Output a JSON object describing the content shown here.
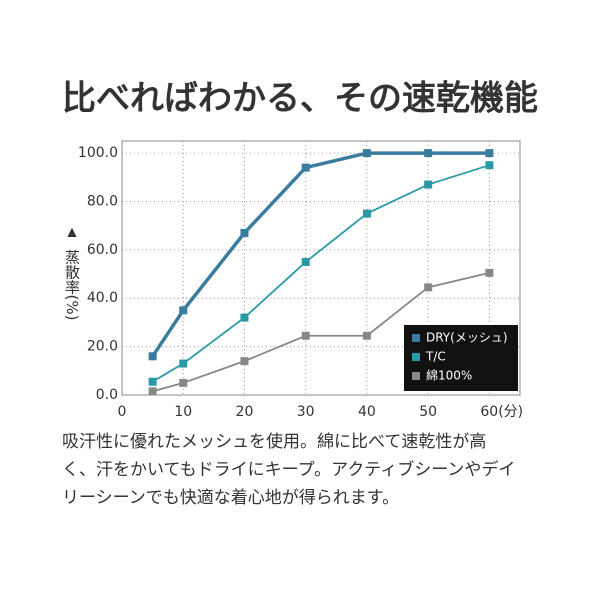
{
  "chart_data": {
    "type": "line",
    "title": "比べればわかる、その速乾機能",
    "y_label": "蒸散率(%)",
    "x": [
      5,
      10,
      20,
      30,
      40,
      50,
      60
    ],
    "series": [
      {
        "name": "DRY(メッシュ)",
        "color": "#3a7ca0",
        "values": [
          16,
          35,
          67,
          94,
          100,
          100,
          100
        ]
      },
      {
        "name": "T/C",
        "color": "#2a9aa8",
        "values": [
          5.5,
          13,
          32,
          55,
          75,
          87,
          95
        ]
      },
      {
        "name": "綿100%",
        "color": "#888888",
        "values": [
          1.5,
          5,
          14,
          24.5,
          24.5,
          44.5,
          50.5
        ]
      }
    ],
    "xlim": [
      0,
      65
    ],
    "ylim": [
      0,
      105
    ],
    "xticks": [
      0,
      10,
      20,
      30,
      40,
      50,
      {
        "value": 60,
        "label": "60(分)"
      }
    ],
    "yticks": [
      {
        "value": 0,
        "label": "0.0"
      },
      {
        "value": 20,
        "label": "20.0"
      },
      {
        "value": 40,
        "label": "40.0"
      },
      {
        "value": 60,
        "label": "60.0"
      },
      {
        "value": 80,
        "label": "80.0"
      },
      {
        "value": 100,
        "label": "100.0"
      }
    ],
    "grid": true,
    "legend": "lower right",
    "description": [
      "吸汗性に優れたメッシュを使用。綿に比べて速乾性が高",
      "く、汗をかいてもドライにキープ。アクティブシーンやデイ",
      "リーシーンでも快適な着心地が得られます。"
    ]
  }
}
